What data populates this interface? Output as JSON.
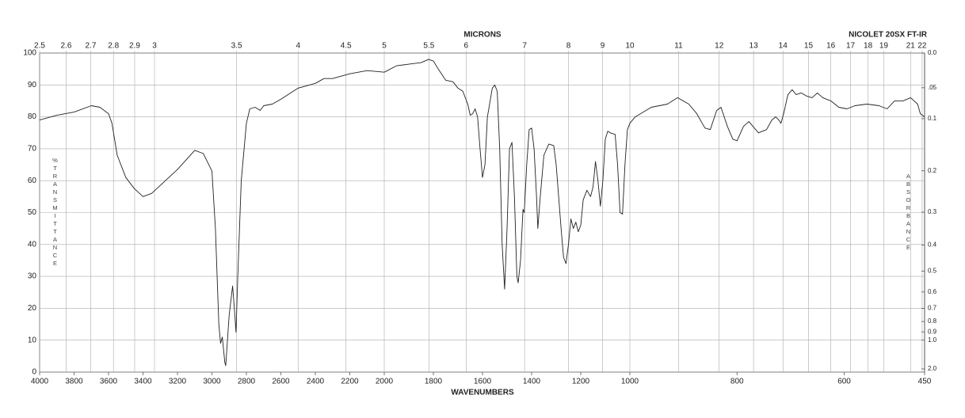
{
  "chart_data": {
    "type": "line",
    "instrument": "NICOLET 20SX FT-IR",
    "x2label": "MICRONS",
    "xlabel": "WAVENUMBERS",
    "ylabel": "%TRANSMITTANCE",
    "y2label": "ABSORBANCE",
    "color": "#222222",
    "grid": true,
    "xlim": [
      4000,
      450
    ],
    "xbreaks": [
      2000,
      1000
    ],
    "xticks": [
      4000,
      3800,
      3600,
      3400,
      3200,
      3000,
      2800,
      2600,
      2400,
      2200,
      2000,
      1800,
      1600,
      1400,
      1200,
      1000,
      800,
      600,
      450
    ],
    "x2ticks": [
      2.5,
      2.6,
      2.7,
      2.8,
      2.9,
      3,
      3.5,
      4,
      4.5,
      5,
      5.5,
      6,
      7,
      8,
      9,
      10,
      11,
      12,
      13,
      14,
      15,
      16,
      17,
      18,
      19,
      21,
      22
    ],
    "ylim": [
      0,
      100
    ],
    "yticks": [
      0,
      10,
      20,
      30,
      40,
      50,
      60,
      70,
      80,
      90,
      100
    ],
    "y2ticks": [
      {
        "value": 0,
        "label": "0.0"
      },
      {
        "value": 0.05,
        "label": ".05"
      },
      0.1,
      0.2,
      0.3,
      0.4,
      0.5,
      0.6,
      0.7,
      0.8,
      0.9,
      {
        "value": 1,
        "label": "1.0"
      },
      {
        "value": 2,
        "label": "2.0"
      }
    ],
    "x": [
      4000,
      3900,
      3800,
      3700,
      3650,
      3600,
      3580,
      3550,
      3500,
      3450,
      3400,
      3350,
      3300,
      3200,
      3100,
      3050,
      3000,
      2980,
      2960,
      2950,
      2940,
      2925,
      2920,
      2900,
      2880,
      2870,
      2860,
      2850,
      2830,
      2800,
      2780,
      2750,
      2720,
      2700,
      2650,
      2600,
      2500,
      2400,
      2350,
      2300,
      2200,
      2100,
      2000,
      1950,
      1900,
      1850,
      1820,
      1800,
      1780,
      1750,
      1720,
      1700,
      1680,
      1660,
      1650,
      1640,
      1630,
      1620,
      1610,
      1600,
      1590,
      1580,
      1560,
      1550,
      1540,
      1530,
      1520,
      1510,
      1500,
      1490,
      1480,
      1470,
      1460,
      1455,
      1445,
      1435,
      1430,
      1420,
      1410,
      1400,
      1390,
      1380,
      1375,
      1365,
      1350,
      1330,
      1310,
      1300,
      1290,
      1280,
      1270,
      1260,
      1250,
      1240,
      1230,
      1220,
      1210,
      1200,
      1190,
      1175,
      1160,
      1150,
      1140,
      1130,
      1120,
      1110,
      1100,
      1090,
      1080,
      1060,
      1050,
      1040,
      1030,
      1020,
      1010,
      1000,
      990,
      960,
      930,
      911,
      890,
      875,
      860,
      850,
      838,
      830,
      818,
      808,
      800,
      788,
      778,
      760,
      745,
      735,
      728,
      722,
      718,
      713,
      705,
      697,
      690,
      680,
      670,
      660,
      650,
      640,
      625,
      610,
      595,
      580,
      558,
      535,
      520,
      506,
      490,
      476,
      463,
      458,
      450
    ],
    "values": [
      79,
      80.5,
      81.5,
      83.5,
      83,
      81,
      78,
      68,
      61,
      57.5,
      55,
      56,
      58.5,
      63.5,
      69.5,
      68.5,
      63,
      45,
      15,
      9,
      11,
      3,
      2,
      18,
      27,
      20,
      12.5,
      30,
      60,
      78,
      82.5,
      83,
      82,
      83.5,
      84,
      85.5,
      89,
      90.5,
      92,
      92,
      93.5,
      94.5,
      94,
      96,
      96.5,
      97,
      98,
      97.5,
      95,
      91.5,
      91,
      89,
      88,
      84,
      80.5,
      81,
      82.5,
      80,
      70,
      61,
      65,
      80,
      89,
      90,
      88,
      70,
      40,
      26,
      45,
      70,
      72,
      55,
      30,
      28,
      35,
      51,
      50,
      65,
      76,
      76.5,
      70,
      55,
      45,
      55,
      68,
      71.5,
      71,
      65,
      55,
      45,
      36,
      34,
      40,
      48,
      45,
      47,
      44,
      46,
      54,
      57,
      55,
      58,
      66,
      60,
      52,
      60,
      73,
      75.5,
      75,
      74.5,
      65,
      50,
      49.5,
      65,
      76,
      78,
      80,
      83,
      84,
      86,
      84,
      81,
      76.5,
      76,
      82,
      83,
      77,
      73,
      72.5,
      77,
      78.5,
      75,
      76,
      79,
      80,
      79,
      78,
      81,
      87,
      88.5,
      87,
      87.5,
      86.5,
      86,
      87.5,
      86,
      85,
      83,
      82.5,
      83.5,
      84,
      83.5,
      82.5,
      85,
      85,
      86,
      84,
      81,
      80
    ]
  }
}
